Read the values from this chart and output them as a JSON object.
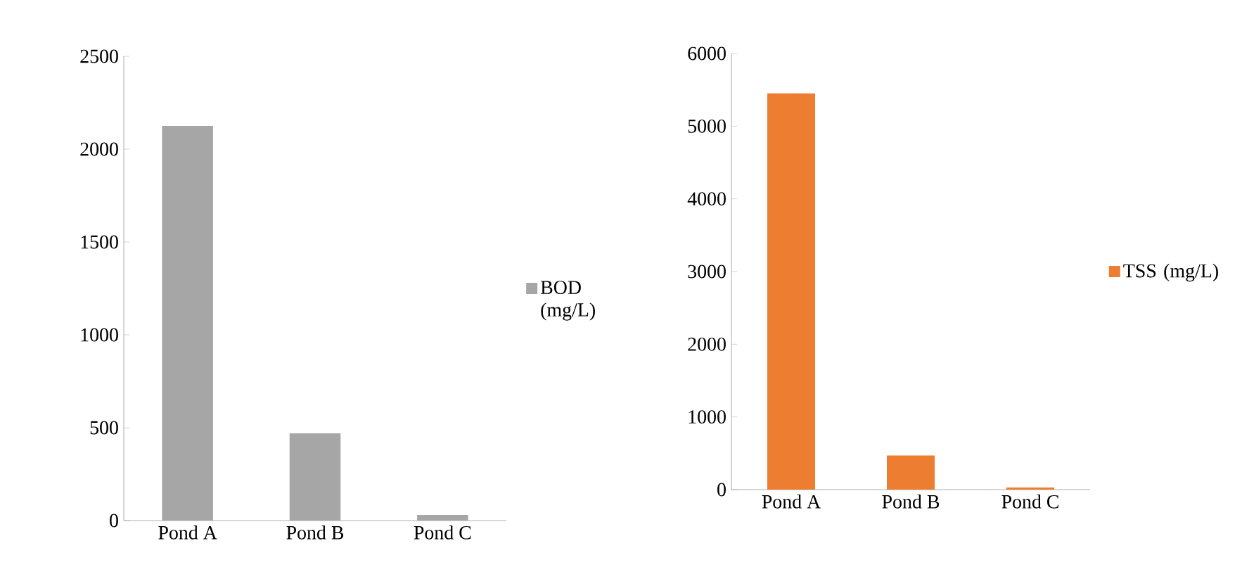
{
  "chart_data": [
    {
      "type": "bar",
      "categories": [
        "Pond A",
        "Pond B",
        "Pond C"
      ],
      "series": [
        {
          "name": "BOD (mg/L)",
          "color": "#a6a6a6",
          "values": [
            2125,
            470,
            30
          ]
        }
      ],
      "ylim": [
        0,
        2500
      ],
      "yticks": [
        0,
        500,
        1000,
        1500,
        2000,
        2500
      ],
      "legend": "right"
    },
    {
      "type": "bar",
      "categories": [
        "Pond A",
        "Pond B",
        "Pond C"
      ],
      "series": [
        {
          "name": "TSS (mg/L)",
          "color": "#ed7d31",
          "values": [
            5450,
            470,
            30
          ]
        }
      ],
      "ylim": [
        0,
        6000
      ],
      "yticks": [
        0,
        1000,
        2000,
        3000,
        4000,
        5000,
        6000
      ],
      "legend": "right"
    }
  ]
}
